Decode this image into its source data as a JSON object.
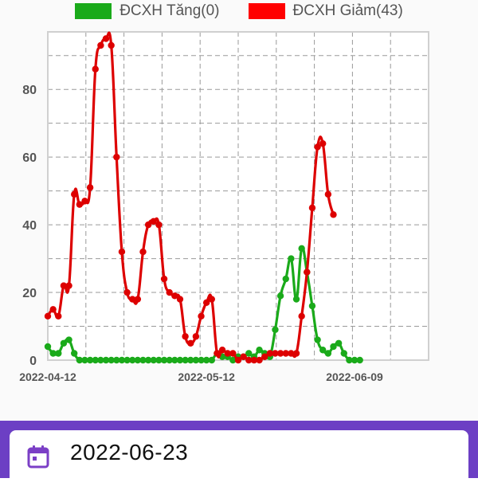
{
  "legend": [
    {
      "label": "ĐCXH Tăng(0)",
      "color": "#1aaa1a"
    },
    {
      "label": "ĐCXH Giảm(43)",
      "color": "#ff0000"
    }
  ],
  "date_selector": {
    "value": "2022-06-23",
    "icon": "calendar-icon"
  },
  "chart_data": {
    "type": "line",
    "x_start": "2022-04-12",
    "x_end": "2022-06-23",
    "x_ticks": [
      "2022-04-12",
      "2022-05-12",
      "2022-06-09"
    ],
    "y_ticks": [
      0,
      20,
      40,
      60,
      80
    ],
    "ylim": [
      0,
      97
    ],
    "grid": true,
    "legend_position": "top-center",
    "series": [
      {
        "name": "ĐCXH Tăng(0)",
        "color": "#1aaa1a",
        "points": [
          [
            "2022-04-12",
            4
          ],
          [
            "2022-04-13",
            2
          ],
          [
            "2022-04-14",
            2
          ],
          [
            "2022-04-15",
            5
          ],
          [
            "2022-04-16",
            6
          ],
          [
            "2022-04-17",
            2
          ],
          [
            "2022-04-18",
            0
          ],
          [
            "2022-04-19",
            0
          ],
          [
            "2022-04-20",
            0
          ],
          [
            "2022-04-21",
            0
          ],
          [
            "2022-04-22",
            0
          ],
          [
            "2022-04-23",
            0
          ],
          [
            "2022-04-24",
            0
          ],
          [
            "2022-04-25",
            0
          ],
          [
            "2022-04-26",
            0
          ],
          [
            "2022-04-27",
            0
          ],
          [
            "2022-04-28",
            0
          ],
          [
            "2022-04-29",
            0
          ],
          [
            "2022-04-30",
            0
          ],
          [
            "2022-05-01",
            0
          ],
          [
            "2022-05-02",
            0
          ],
          [
            "2022-05-03",
            0
          ],
          [
            "2022-05-04",
            0
          ],
          [
            "2022-05-05",
            0
          ],
          [
            "2022-05-06",
            0
          ],
          [
            "2022-05-07",
            0
          ],
          [
            "2022-05-08",
            0
          ],
          [
            "2022-05-09",
            0
          ],
          [
            "2022-05-10",
            0
          ],
          [
            "2022-05-11",
            0
          ],
          [
            "2022-05-12",
            0
          ],
          [
            "2022-05-13",
            0
          ],
          [
            "2022-05-14",
            2
          ],
          [
            "2022-05-15",
            1
          ],
          [
            "2022-05-16",
            1
          ],
          [
            "2022-05-17",
            0
          ],
          [
            "2022-05-18",
            1
          ],
          [
            "2022-05-19",
            1
          ],
          [
            "2022-05-20",
            2
          ],
          [
            "2022-05-21",
            1
          ],
          [
            "2022-05-22",
            3
          ],
          [
            "2022-05-23",
            2
          ],
          [
            "2022-05-24",
            1
          ],
          [
            "2022-05-25",
            9
          ],
          [
            "2022-05-26",
            19
          ],
          [
            "2022-05-27",
            24
          ],
          [
            "2022-05-28",
            30
          ],
          [
            "2022-05-29",
            18
          ],
          [
            "2022-05-30",
            33
          ],
          [
            "2022-05-31",
            26
          ],
          [
            "2022-06-01",
            16
          ],
          [
            "2022-06-02",
            6
          ],
          [
            "2022-06-03",
            3
          ],
          [
            "2022-06-04",
            2
          ],
          [
            "2022-06-05",
            4
          ],
          [
            "2022-06-06",
            5
          ],
          [
            "2022-06-07",
            2
          ],
          [
            "2022-06-08",
            0
          ],
          [
            "2022-06-09",
            0
          ],
          [
            "2022-06-10",
            0
          ]
        ]
      },
      {
        "name": "ĐCXH Giảm(43)",
        "color": "#dd0000",
        "points": [
          [
            "2022-04-12",
            13
          ],
          [
            "2022-04-13",
            15
          ],
          [
            "2022-04-14",
            13
          ],
          [
            "2022-04-15",
            22
          ],
          [
            "2022-04-16",
            22
          ],
          [
            "2022-04-17",
            49
          ],
          [
            "2022-04-18",
            46
          ],
          [
            "2022-04-19",
            47
          ],
          [
            "2022-04-20",
            51
          ],
          [
            "2022-04-21",
            86
          ],
          [
            "2022-04-22",
            93
          ],
          [
            "2022-04-23",
            95
          ],
          [
            "2022-04-24",
            93
          ],
          [
            "2022-04-25",
            60
          ],
          [
            "2022-04-26",
            32
          ],
          [
            "2022-04-27",
            20
          ],
          [
            "2022-04-28",
            18
          ],
          [
            "2022-04-29",
            18
          ],
          [
            "2022-04-30",
            32
          ],
          [
            "2022-05-01",
            40
          ],
          [
            "2022-05-02",
            41
          ],
          [
            "2022-05-03",
            40
          ],
          [
            "2022-05-04",
            24
          ],
          [
            "2022-05-05",
            20
          ],
          [
            "2022-05-06",
            19
          ],
          [
            "2022-05-07",
            18
          ],
          [
            "2022-05-08",
            7
          ],
          [
            "2022-05-09",
            5
          ],
          [
            "2022-05-10",
            7
          ],
          [
            "2022-05-11",
            13
          ],
          [
            "2022-05-12",
            17
          ],
          [
            "2022-05-13",
            18
          ],
          [
            "2022-05-14",
            2
          ],
          [
            "2022-05-15",
            3
          ],
          [
            "2022-05-16",
            2
          ],
          [
            "2022-05-17",
            2
          ],
          [
            "2022-05-18",
            0
          ],
          [
            "2022-05-19",
            1
          ],
          [
            "2022-05-20",
            0
          ],
          [
            "2022-05-21",
            0
          ],
          [
            "2022-05-22",
            0
          ],
          [
            "2022-05-23",
            1
          ],
          [
            "2022-05-24",
            2
          ],
          [
            "2022-05-25",
            2
          ],
          [
            "2022-05-26",
            2
          ],
          [
            "2022-05-27",
            2
          ],
          [
            "2022-05-28",
            2
          ],
          [
            "2022-05-29",
            2
          ],
          [
            "2022-05-30",
            13
          ],
          [
            "2022-05-31",
            26
          ],
          [
            "2022-06-01",
            45
          ],
          [
            "2022-06-02",
            63
          ],
          [
            "2022-06-03",
            64
          ],
          [
            "2022-06-04",
            49
          ],
          [
            "2022-06-05",
            43
          ]
        ]
      }
    ]
  }
}
